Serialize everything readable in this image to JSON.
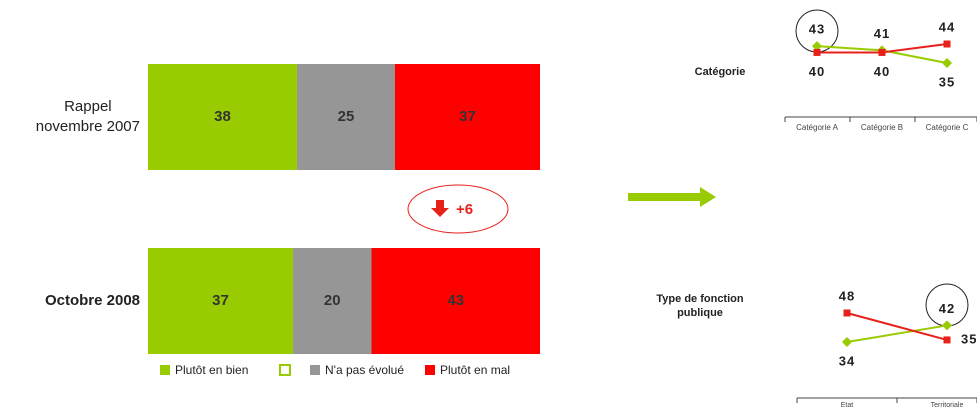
{
  "chart_data": [
    {
      "type": "bar",
      "orientation": "horizontal",
      "stacked": true,
      "categories": [
        "Rappel\nnovembre 2007",
        "Octobre 2008"
      ],
      "series": [
        {
          "name": "Plutôt en bien",
          "color": "#99cc00",
          "values": [
            38,
            37
          ]
        },
        {
          "name": "N'a pas évolué",
          "color": "#969696",
          "values": [
            25,
            20
          ]
        },
        {
          "name": "Plutôt en mal",
          "color": "#ff0000",
          "values": [
            37,
            43
          ]
        }
      ],
      "annotation": "+6"
    },
    {
      "type": "line",
      "title": "Catégorie",
      "categories": [
        "Catégorie A",
        "Catégorie B",
        "Catégorie C"
      ],
      "series": [
        {
          "color": "#99cc00",
          "values": [
            43,
            41,
            35
          ]
        },
        {
          "color": "#e8201a",
          "values": [
            40,
            40,
            44
          ]
        }
      ]
    },
    {
      "type": "line",
      "title": "Type de fonction\npublique",
      "categories": [
        "Etat",
        "Territoriale"
      ],
      "series": [
        {
          "color": "#99cc00",
          "values": [
            34,
            42
          ]
        },
        {
          "color": "#e8201a",
          "values": [
            48,
            35
          ]
        }
      ]
    }
  ]
}
